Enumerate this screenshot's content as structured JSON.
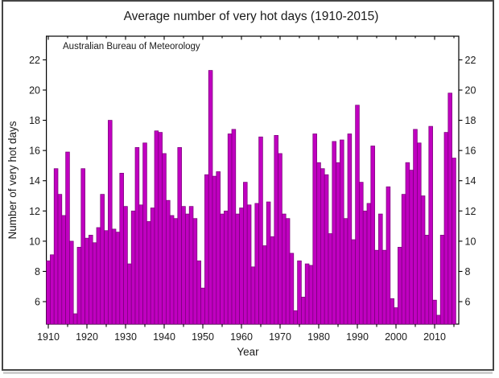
{
  "figure": {
    "title": "Average number of very hot days (1910-2015)",
    "annotation": "Australian Bureau of Meteorology",
    "x_axis_label": "Year",
    "y_axis_label": "Number of very hot days"
  },
  "chart_data": {
    "type": "bar",
    "title": "Average number of very hot days (1910-2015)",
    "annotation": "Australian Bureau of Meteorology",
    "xlabel": "Year",
    "ylabel": "Number of very hot days",
    "x_start": 1910,
    "x_end": 2015,
    "x_step": 1,
    "values": [
      8.7,
      9.1,
      14.8,
      13.1,
      11.7,
      15.9,
      10.0,
      5.2,
      9.6,
      14.8,
      10.2,
      10.4,
      9.9,
      10.9,
      13.1,
      10.7,
      18.0,
      10.8,
      10.6,
      14.5,
      12.3,
      8.5,
      12.0,
      16.2,
      12.4,
      16.5,
      11.3,
      12.2,
      17.3,
      17.2,
      15.8,
      12.7,
      11.7,
      11.5,
      16.2,
      12.3,
      11.8,
      12.3,
      11.5,
      8.7,
      6.9,
      14.4,
      21.3,
      14.3,
      14.6,
      11.8,
      12.0,
      17.1,
      17.4,
      11.8,
      12.2,
      13.9,
      12.4,
      8.3,
      12.5,
      16.9,
      9.7,
      12.6,
      10.3,
      17.0,
      15.8,
      11.8,
      11.5,
      9.2,
      5.4,
      8.7,
      6.3,
      8.5,
      8.4,
      17.1,
      15.2,
      14.8,
      14.4,
      10.5,
      16.6,
      15.2,
      16.7,
      11.5,
      17.1,
      10.1,
      19.0,
      13.9,
      12.0,
      12.5,
      16.3,
      9.4,
      11.8,
      9.4,
      13.6,
      6.2,
      5.6,
      9.6,
      13.1,
      15.2,
      14.7,
      17.4,
      16.5,
      13.0,
      10.4,
      17.6,
      6.1,
      5.1,
      10.4,
      17.2,
      19.8,
      15.5
    ],
    "ylim": [
      4.5,
      23.5
    ],
    "y_ticks": [
      6,
      8,
      10,
      12,
      14,
      16,
      18,
      20,
      22
    ],
    "x_major_ticks": [
      1910,
      1920,
      1930,
      1940,
      1950,
      1960,
      1970,
      1980,
      1990,
      2000,
      2010
    ],
    "x_minor_step": 5,
    "grid": "off",
    "legend": "none",
    "bar_color": "#c000c0",
    "bar_edge_color": "#760076",
    "axis_color": "#000000",
    "frame_border_color": "#454545"
  }
}
